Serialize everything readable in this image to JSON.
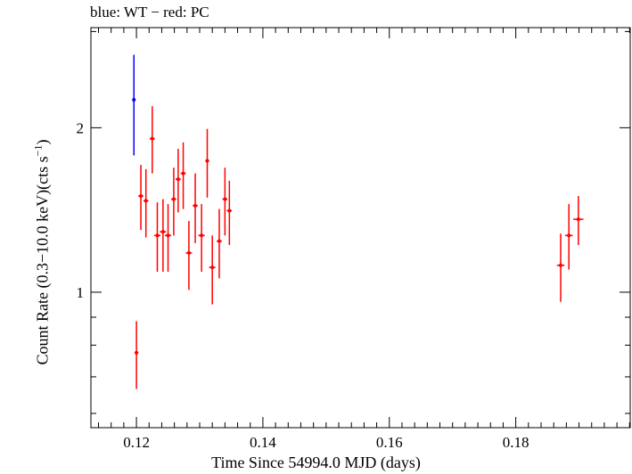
{
  "chart_data": {
    "type": "scatter",
    "title": "blue: WT − red: PC",
    "xlabel": "Time Since 54994.0 MJD (days)",
    "ylabel_main": "Count Rate (0.3−10.0 keV)(cts s",
    "ylabel_sup": "−1",
    "ylabel_end": ")",
    "xlim": [
      0.1128,
      0.1981
    ],
    "ylim": [
      0.565,
      3.05
    ],
    "yscale": "log",
    "grid": false,
    "x_ticks": [
      0.12,
      0.14,
      0.16,
      0.18
    ],
    "x_tick_labels": [
      "0.12",
      "0.14",
      "0.16",
      "0.18"
    ],
    "y_ticks": [
      1,
      2
    ],
    "y_tick_labels": [
      "1",
      "2"
    ],
    "series": [
      {
        "color": "#0000ff",
        "points": [
          {
            "x": 0.1196,
            "y": 2.25,
            "xerr": 0.0001,
            "ylo": 1.78,
            "yhi": 2.72
          }
        ]
      },
      {
        "color": "#ff0000",
        "points": [
          {
            "x": 0.12,
            "y": 0.775,
            "xerr": 0.0003,
            "ylo": 0.665,
            "yhi": 0.885
          },
          {
            "x": 0.1207,
            "y": 1.5,
            "xerr": 0.0004,
            "ylo": 1.3,
            "yhi": 1.71
          },
          {
            "x": 0.1215,
            "y": 1.47,
            "xerr": 0.0004,
            "ylo": 1.26,
            "yhi": 1.68
          },
          {
            "x": 0.1225,
            "y": 1.91,
            "xerr": 0.0004,
            "ylo": 1.65,
            "yhi": 2.19
          },
          {
            "x": 0.1233,
            "y": 1.27,
            "xerr": 0.0005,
            "ylo": 1.09,
            "yhi": 1.46
          },
          {
            "x": 0.1242,
            "y": 1.29,
            "xerr": 0.0005,
            "ylo": 1.09,
            "yhi": 1.48
          },
          {
            "x": 0.125,
            "y": 1.27,
            "xerr": 0.0005,
            "ylo": 1.09,
            "yhi": 1.45
          },
          {
            "x": 0.1259,
            "y": 1.48,
            "xerr": 0.0004,
            "ylo": 1.27,
            "yhi": 1.69
          },
          {
            "x": 0.1266,
            "y": 1.61,
            "xerr": 0.0004,
            "ylo": 1.4,
            "yhi": 1.83
          },
          {
            "x": 0.1274,
            "y": 1.65,
            "xerr": 0.0004,
            "ylo": 1.42,
            "yhi": 1.88
          },
          {
            "x": 0.1283,
            "y": 1.18,
            "xerr": 0.0005,
            "ylo": 1.01,
            "yhi": 1.35
          },
          {
            "x": 0.1293,
            "y": 1.44,
            "xerr": 0.0004,
            "ylo": 1.23,
            "yhi": 1.65
          },
          {
            "x": 0.1303,
            "y": 1.27,
            "xerr": 0.0005,
            "ylo": 1.09,
            "yhi": 1.45
          },
          {
            "x": 0.1312,
            "y": 1.74,
            "xerr": 0.0003,
            "ylo": 1.49,
            "yhi": 1.99
          },
          {
            "x": 0.132,
            "y": 1.11,
            "xerr": 0.0005,
            "ylo": 0.95,
            "yhi": 1.27
          },
          {
            "x": 0.1331,
            "y": 1.24,
            "xerr": 0.0004,
            "ylo": 1.06,
            "yhi": 1.42
          },
          {
            "x": 0.134,
            "y": 1.48,
            "xerr": 0.0004,
            "ylo": 1.27,
            "yhi": 1.69
          },
          {
            "x": 0.1347,
            "y": 1.41,
            "xerr": 0.0004,
            "ylo": 1.22,
            "yhi": 1.6
          },
          {
            "x": 0.1871,
            "y": 1.12,
            "xerr": 0.0006,
            "ylo": 0.96,
            "yhi": 1.28
          },
          {
            "x": 0.1884,
            "y": 1.27,
            "xerr": 0.0006,
            "ylo": 1.1,
            "yhi": 1.45
          },
          {
            "x": 0.1899,
            "y": 1.36,
            "xerr": 0.0008,
            "ylo": 1.22,
            "yhi": 1.5
          }
        ]
      }
    ]
  }
}
